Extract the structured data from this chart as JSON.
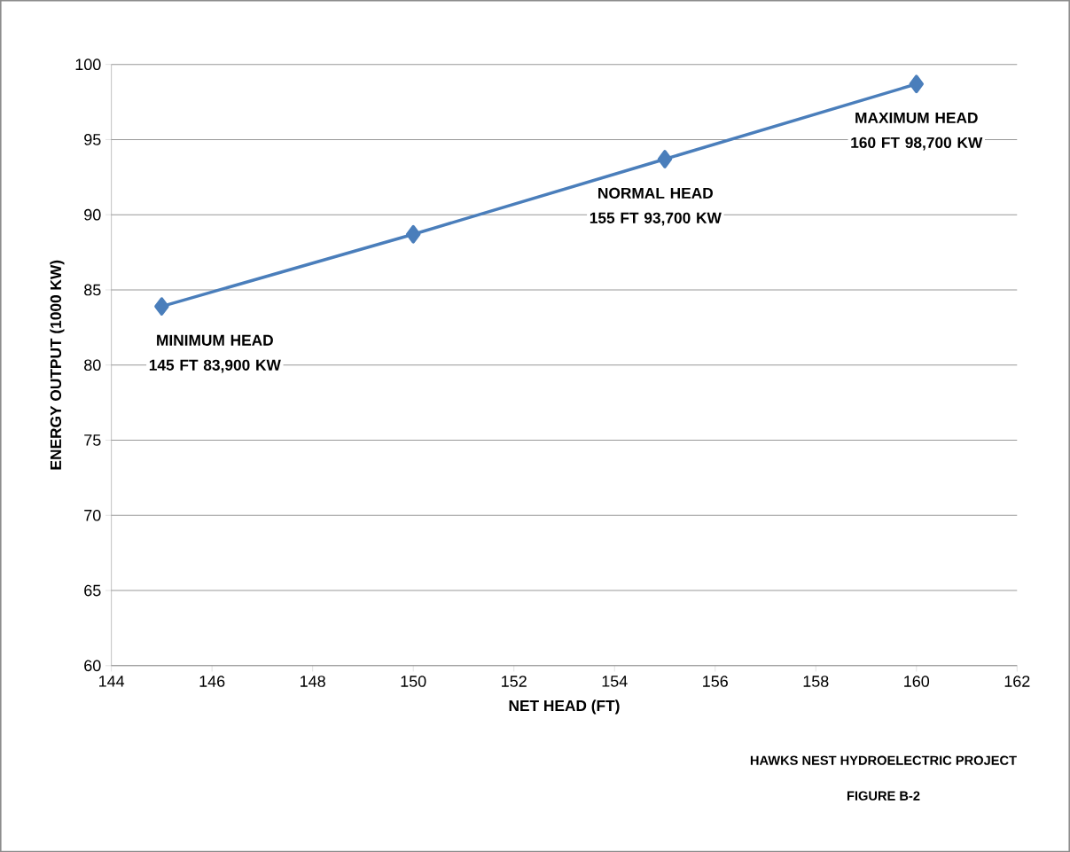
{
  "chart_data": {
    "type": "line",
    "xlabel": "NET HEAD (FT)",
    "ylabel": "ENERGY OUTPUT (1000 KW)",
    "x": [
      145,
      150,
      155,
      160
    ],
    "series": [
      {
        "color": "#4a7ebb",
        "values": [
          83.9,
          88.7,
          93.7,
          98.7
        ]
      }
    ],
    "xlim": [
      144,
      162
    ],
    "ylim": [
      60,
      100
    ],
    "xticks": [
      144,
      146,
      148,
      150,
      152,
      154,
      156,
      158,
      160,
      162
    ],
    "yticks": [
      60,
      65,
      70,
      75,
      80,
      85,
      90,
      95,
      100
    ],
    "grid": "y",
    "marker": "diamond",
    "line_style": "solid",
    "annotations": [
      {
        "text": "MINIMUM HEAD 145 FT 83,900 KW",
        "x": 145,
        "y": 83.9
      },
      {
        "text": "NORMAL HEAD 155 FT 93,700 KW",
        "x": 155,
        "y": 93.7
      },
      {
        "text": "MAXIMUM HEAD 160 FT 98,700 KW",
        "x": 160,
        "y": 98.7
      },
      "HAWKS NEST HYDROELECTRIC PROJECT",
      "FIGURE  B-2"
    ]
  }
}
